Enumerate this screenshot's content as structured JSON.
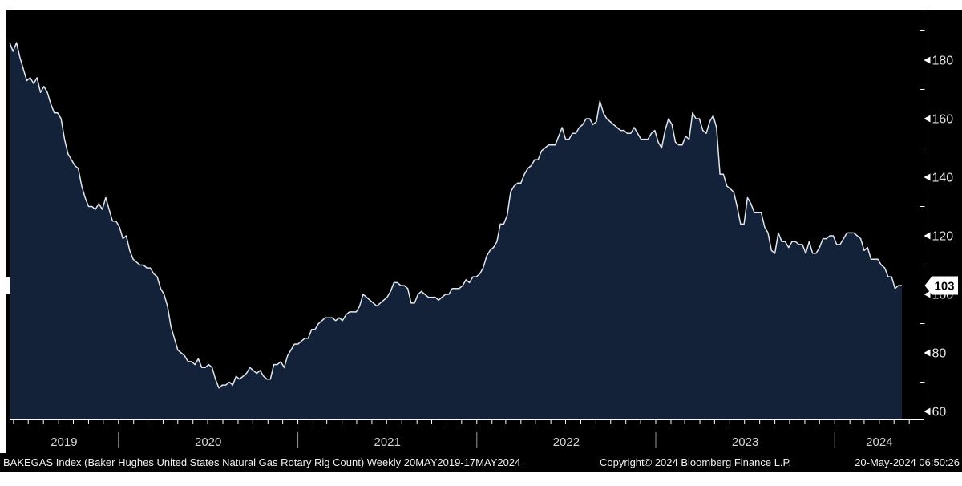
{
  "chart": {
    "security": "BAKEGAS Index",
    "description": "Baker Hughes United States Natural Gas Rotary Rig Count",
    "frequency": "Weekly",
    "period": "20MAY2019-17MAY2024",
    "last_value_tag": "103"
  },
  "footer": {
    "left": "BAKEGAS Index (Baker Hughes United States Natural Gas Rotary Rig Count)  Weekly 20MAY2019-17MAY2024",
    "center": "Copyright© 2024 Bloomberg Finance L.P.",
    "right": "20-May-2024 06:50:26"
  },
  "colors": {
    "page": "#ffffff",
    "canvas": "#000000",
    "area_fill": "#142239",
    "line": "#dfe5ec",
    "axis": "#ffffff",
    "tick_label": "#e4e4e4",
    "year_label": "#d6d6d6",
    "separator": "#9a9a9a",
    "tag_bg": "#ffffff",
    "tag_text": "#000000",
    "footer_text": "#f1f1f1"
  },
  "chart_data": {
    "type": "area",
    "title": "BAKEGAS Index (Baker Hughes United States Natural Gas Rotary Rig Count)",
    "xlabel": "",
    "ylabel": "",
    "frequency": "weekly",
    "x_start_date": "2019-05-24",
    "x_end_date": "2024-05-17",
    "x_year_labels": [
      "2019",
      "2020",
      "2021",
      "2022",
      "2023",
      "2024"
    ],
    "y_ticks_major": [
      60,
      80,
      100,
      120,
      140,
      160,
      180
    ],
    "y_ticks_minor": [
      70,
      90,
      110,
      130,
      150,
      170,
      190
    ],
    "ylim": [
      57,
      197
    ],
    "grid": false,
    "legend": "none",
    "last_value": 103,
    "series": [
      {
        "name": "BAKEGAS Index",
        "values": [
          186,
          183,
          186,
          181,
          177,
          173,
          174,
          172,
          174,
          169,
          171,
          169,
          165,
          162,
          162,
          160,
          153,
          148,
          146,
          144,
          143,
          137,
          133,
          130,
          130,
          129,
          131,
          129,
          133,
          129,
          125,
          125,
          123,
          119,
          120,
          115,
          112,
          111,
          110,
          110,
          109,
          109,
          107,
          106,
          102,
          100,
          96,
          89,
          85,
          81,
          80,
          79,
          77,
          77,
          76,
          78,
          75,
          75,
          76,
          75,
          71,
          68,
          69,
          69,
          70,
          69,
          72,
          71,
          72,
          73,
          75,
          74,
          73,
          74,
          72,
          71,
          71,
          76,
          76,
          77,
          75,
          79,
          81,
          83,
          83,
          84,
          85,
          85,
          88,
          88,
          90,
          91,
          92,
          92,
          92,
          91,
          92,
          91,
          93,
          94,
          94,
          94,
          96,
          100,
          99,
          98,
          97,
          96,
          97,
          98,
          99,
          101,
          104,
          104,
          103,
          103,
          102,
          97,
          97,
          100,
          101,
          100,
          99,
          99,
          99,
          98,
          99,
          100,
          100,
          102,
          102,
          102,
          103,
          105,
          104,
          106,
          106,
          107,
          109,
          113,
          115,
          116,
          118,
          124,
          124,
          127,
          135,
          137,
          138,
          138,
          141,
          143,
          144,
          146,
          146,
          149,
          150,
          151,
          151,
          151,
          154,
          157,
          153,
          153,
          155,
          155,
          157,
          158,
          160,
          160,
          158,
          159,
          166,
          162,
          160,
          159,
          158,
          157,
          156,
          156,
          155,
          155,
          157,
          155,
          153,
          153,
          153,
          155,
          156,
          152,
          150,
          156,
          160,
          158,
          152,
          151,
          151,
          154,
          153,
          162,
          160,
          160,
          156,
          155,
          159,
          161,
          157,
          141,
          141,
          137,
          136,
          135,
          130,
          124,
          124,
          133,
          131,
          128,
          128,
          128,
          123,
          121,
          115,
          114,
          121,
          118,
          118,
          116,
          118,
          118,
          117,
          117,
          114,
          118,
          114,
          114,
          116,
          119,
          119,
          120,
          120,
          117,
          117,
          119,
          121,
          121,
          121,
          120,
          119,
          115,
          116,
          112,
          112,
          112,
          110,
          109,
          106,
          106,
          102,
          103,
          103
        ]
      }
    ]
  }
}
